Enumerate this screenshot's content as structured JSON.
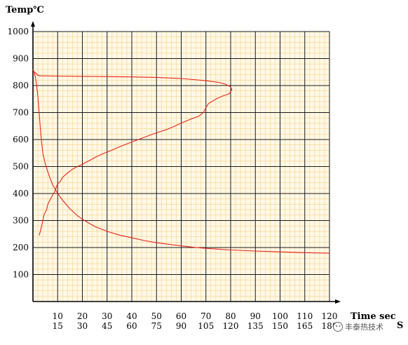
{
  "chart_data": {
    "type": "line",
    "ylabel": "Temp℃",
    "xlabel": "Time sec",
    "xlabel2": "S",
    "ylim": [
      0,
      1000
    ],
    "xlim": [
      0,
      120
    ],
    "y_ticks": [
      100,
      200,
      300,
      400,
      500,
      600,
      700,
      800,
      900,
      1000
    ],
    "x_ticks": [
      10,
      20,
      30,
      40,
      50,
      60,
      70,
      80,
      90,
      100,
      110,
      120
    ],
    "x_ticks_secondary": [
      "15",
      "30",
      "45",
      "60",
      "75",
      "90",
      "105",
      "120",
      "135",
      "150",
      "165",
      "180"
    ],
    "grid": true,
    "series": [
      {
        "values": [
          [
            0,
            850
          ],
          [
            1,
            848
          ],
          [
            2,
            838
          ],
          [
            3,
            836
          ],
          [
            10,
            835
          ],
          [
            20,
            834
          ],
          [
            30,
            833
          ],
          [
            40,
            832
          ],
          [
            50,
            830
          ],
          [
            60,
            826
          ],
          [
            70,
            818
          ],
          [
            75,
            812
          ],
          [
            78,
            805
          ],
          [
            80,
            795
          ],
          [
            80.5,
            785
          ],
          [
            79.5,
            770
          ],
          [
            77,
            762
          ],
          [
            74,
            750
          ],
          [
            71,
            733
          ],
          [
            70,
            718
          ],
          [
            69,
            700
          ],
          [
            67,
            686
          ],
          [
            64,
            676
          ],
          [
            60,
            661
          ],
          [
            57,
            648
          ],
          [
            54,
            637
          ],
          [
            50,
            625
          ],
          [
            45,
            608
          ],
          [
            40,
            591
          ],
          [
            35,
            573
          ],
          [
            32,
            561
          ],
          [
            29,
            550
          ],
          [
            26,
            538
          ],
          [
            23,
            523
          ],
          [
            20,
            508
          ],
          [
            18,
            500
          ],
          [
            16,
            490
          ],
          [
            14,
            476
          ],
          [
            12,
            460
          ],
          [
            11,
            444
          ],
          [
            10,
            436
          ],
          [
            9.5,
            425
          ],
          [
            9,
            410
          ],
          [
            8,
            395
          ],
          [
            7,
            378
          ],
          [
            6,
            360
          ],
          [
            5.5,
            340
          ],
          [
            4.5,
            322
          ],
          [
            4,
            300
          ],
          [
            3.5,
            280
          ],
          [
            3,
            260
          ],
          [
            2.5,
            245
          ]
        ]
      },
      {
        "values": [
          [
            0,
            860
          ],
          [
            0.5,
            850
          ],
          [
            1,
            830
          ],
          [
            1.5,
            800
          ],
          [
            2,
            760
          ],
          [
            2.5,
            700
          ],
          [
            3,
            640
          ],
          [
            3.5,
            590
          ],
          [
            4,
            550
          ],
          [
            5,
            510
          ],
          [
            6,
            480
          ],
          [
            7,
            455
          ],
          [
            8,
            432
          ],
          [
            10,
            400
          ],
          [
            12,
            375
          ],
          [
            15,
            343
          ],
          [
            18,
            318
          ],
          [
            20,
            305
          ],
          [
            25,
            278
          ],
          [
            30,
            260
          ],
          [
            35,
            246
          ],
          [
            40,
            236
          ],
          [
            45,
            226
          ],
          [
            50,
            218
          ],
          [
            55,
            212
          ],
          [
            60,
            206
          ],
          [
            65,
            201
          ],
          [
            70,
            197
          ],
          [
            75,
            194
          ],
          [
            80,
            191
          ],
          [
            90,
            187
          ],
          [
            100,
            184
          ],
          [
            110,
            181
          ],
          [
            120,
            179
          ]
        ]
      }
    ]
  },
  "colors": {
    "grid_major": "#1a1a1a",
    "grid_minor": "#f5d28a",
    "plot_bg": "#fff8e6",
    "line": "#e8231a",
    "axis": "#000000"
  },
  "watermark": {
    "icon": "wechat-icon",
    "text": "丰泰热技术"
  }
}
